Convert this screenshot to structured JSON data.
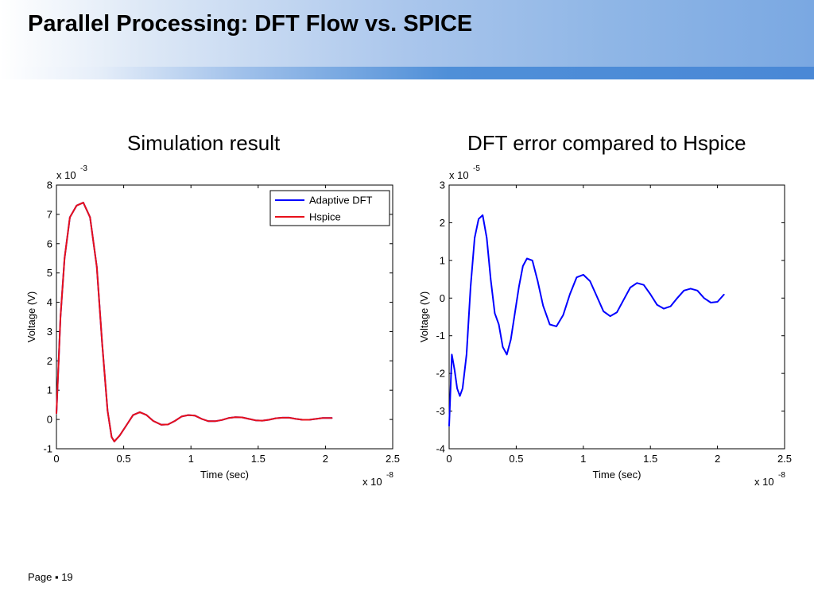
{
  "slide": {
    "title": "Parallel Processing: DFT Flow vs. SPICE",
    "footer": "Page ▪ 19"
  },
  "colors": {
    "adaptive_dft": "#0000ff",
    "hspice": "#e8101a",
    "axes": "#000000"
  },
  "chart_data": [
    {
      "type": "line",
      "title": "Simulation result",
      "xlabel": "Time (sec)",
      "ylabel": "Voltage (V)",
      "x_multiplier": "x 10",
      "x_exponent": "-8",
      "y_multiplier": "x 10",
      "y_exponent": "-3",
      "xlim": [
        0,
        2.5
      ],
      "ylim": [
        -1,
        8
      ],
      "x_ticks": [
        "0",
        "0.5",
        "1",
        "1.5",
        "2",
        "2.5"
      ],
      "y_ticks": [
        "-1",
        "0",
        "1",
        "2",
        "3",
        "4",
        "5",
        "6",
        "7",
        "8"
      ],
      "grid": false,
      "legend": "top-right",
      "legend_entries": [
        "Adaptive DFT",
        "Hspice"
      ],
      "series": [
        {
          "name": "Adaptive DFT",
          "x": [
            0,
            0.03,
            0.06,
            0.1,
            0.15,
            0.2,
            0.25,
            0.3,
            0.34,
            0.38,
            0.41,
            0.43,
            0.47,
            0.52,
            0.57,
            0.62,
            0.67,
            0.72,
            0.78,
            0.83,
            0.88,
            0.93,
            0.98,
            1.03,
            1.08,
            1.13,
            1.18,
            1.23,
            1.28,
            1.33,
            1.38,
            1.43,
            1.48,
            1.53,
            1.58,
            1.63,
            1.68,
            1.73,
            1.78,
            1.83,
            1.88,
            1.93,
            1.98,
            2.03,
            2.05
          ],
          "y": [
            0.2,
            3.5,
            5.5,
            6.9,
            7.3,
            7.4,
            6.9,
            5.2,
            2.6,
            0.3,
            -0.6,
            -0.75,
            -0.55,
            -0.2,
            0.15,
            0.25,
            0.15,
            -0.05,
            -0.18,
            -0.17,
            -0.05,
            0.1,
            0.15,
            0.13,
            0.02,
            -0.06,
            -0.06,
            -0.02,
            0.05,
            0.08,
            0.07,
            0.02,
            -0.03,
            -0.04,
            -0.01,
            0.04,
            0.06,
            0.06,
            0.02,
            -0.01,
            -0.01,
            0.02,
            0.05,
            0.05,
            0.05
          ]
        },
        {
          "name": "Hspice",
          "x": [
            0,
            0.03,
            0.06,
            0.1,
            0.15,
            0.2,
            0.25,
            0.3,
            0.34,
            0.38,
            0.41,
            0.43,
            0.47,
            0.52,
            0.57,
            0.62,
            0.67,
            0.72,
            0.78,
            0.83,
            0.88,
            0.93,
            0.98,
            1.03,
            1.08,
            1.13,
            1.18,
            1.23,
            1.28,
            1.33,
            1.38,
            1.43,
            1.48,
            1.53,
            1.58,
            1.63,
            1.68,
            1.73,
            1.78,
            1.83,
            1.88,
            1.93,
            1.98,
            2.03,
            2.05
          ],
          "y": [
            0.2,
            3.5,
            5.5,
            6.9,
            7.3,
            7.4,
            6.9,
            5.2,
            2.6,
            0.3,
            -0.6,
            -0.75,
            -0.55,
            -0.2,
            0.15,
            0.25,
            0.15,
            -0.05,
            -0.18,
            -0.17,
            -0.05,
            0.1,
            0.15,
            0.13,
            0.02,
            -0.06,
            -0.06,
            -0.02,
            0.05,
            0.08,
            0.07,
            0.02,
            -0.03,
            -0.04,
            -0.01,
            0.04,
            0.06,
            0.06,
            0.02,
            -0.01,
            -0.01,
            0.02,
            0.05,
            0.05,
            0.05
          ]
        }
      ]
    },
    {
      "type": "line",
      "title": "DFT error compared to Hspice",
      "xlabel": "Time (sec)",
      "ylabel": "Voltage (V)",
      "x_multiplier": "x 10",
      "x_exponent": "-8",
      "y_multiplier": "x 10",
      "y_exponent": "-5",
      "xlim": [
        0,
        2.5
      ],
      "ylim": [
        -4,
        3
      ],
      "x_ticks": [
        "0",
        "0.5",
        "1",
        "1.5",
        "2",
        "2.5"
      ],
      "y_ticks": [
        "-4",
        "-3",
        "-2",
        "-1",
        "0",
        "1",
        "2",
        "3"
      ],
      "grid": false,
      "series": [
        {
          "x": [
            0,
            0.02,
            0.04,
            0.06,
            0.08,
            0.1,
            0.13,
            0.16,
            0.19,
            0.22,
            0.25,
            0.28,
            0.31,
            0.34,
            0.37,
            0.4,
            0.43,
            0.46,
            0.49,
            0.52,
            0.55,
            0.58,
            0.62,
            0.66,
            0.7,
            0.75,
            0.8,
            0.85,
            0.9,
            0.95,
            1.0,
            1.05,
            1.1,
            1.15,
            1.2,
            1.25,
            1.3,
            1.35,
            1.4,
            1.45,
            1.5,
            1.55,
            1.6,
            1.65,
            1.7,
            1.75,
            1.8,
            1.85,
            1.9,
            1.95,
            2.0,
            2.05
          ],
          "y": [
            -3.4,
            -1.5,
            -1.9,
            -2.4,
            -2.6,
            -2.4,
            -1.5,
            0.3,
            1.6,
            2.1,
            2.2,
            1.6,
            0.5,
            -0.4,
            -0.7,
            -1.3,
            -1.5,
            -1.1,
            -0.4,
            0.3,
            0.85,
            1.05,
            1.0,
            0.45,
            -0.2,
            -0.7,
            -0.75,
            -0.45,
            0.1,
            0.55,
            0.62,
            0.45,
            0.05,
            -0.35,
            -0.48,
            -0.38,
            -0.05,
            0.28,
            0.4,
            0.35,
            0.1,
            -0.18,
            -0.28,
            -0.22,
            0.0,
            0.2,
            0.25,
            0.2,
            0.0,
            -0.12,
            -0.1,
            0.1
          ]
        }
      ]
    }
  ]
}
